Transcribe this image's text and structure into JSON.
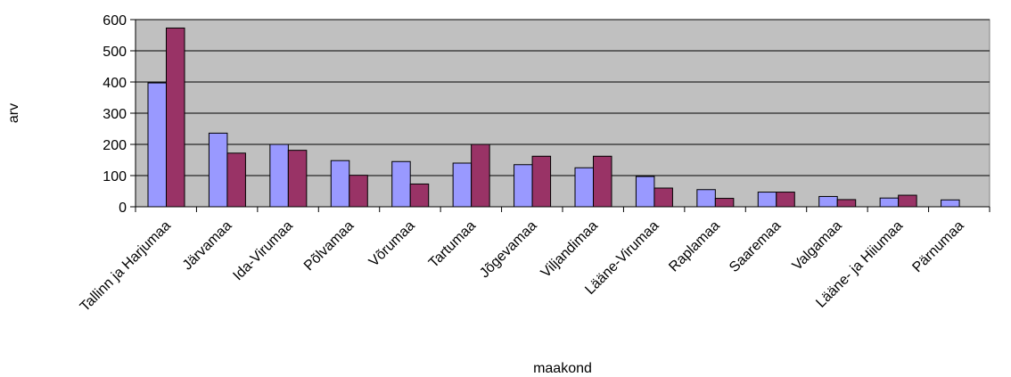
{
  "chart_data": {
    "type": "bar",
    "title": "",
    "xlabel": "maakond",
    "ylabel": "arv",
    "ylim": [
      0,
      600
    ],
    "yticks": [
      0,
      100,
      200,
      300,
      400,
      500,
      600
    ],
    "grid": true,
    "legend": "none",
    "plot_background": "#c0c0c0",
    "categories": [
      "Tallinn ja Harjumaa",
      "Järvamaa",
      "Ida-Virumaa",
      "Põlvamaa",
      "Võrumaa",
      "Tartumaa",
      "Jõgevamaa",
      "Viljandimaa",
      "Lääne-Virumaa",
      "Raplamaa",
      "Saaremaa",
      "Valgamaa",
      "Lääne- ja Hiiumaa",
      "Pärnumaa"
    ],
    "series": [
      {
        "color": "#9999ff",
        "values": [
          397,
          236,
          200,
          148,
          145,
          140,
          135,
          125,
          97,
          55,
          47,
          33,
          28,
          22
        ]
      },
      {
        "color": "#993366",
        "values": [
          573,
          172,
          181,
          101,
          73,
          200,
          162,
          162,
          60,
          27,
          47,
          23,
          37,
          null
        ]
      }
    ]
  }
}
